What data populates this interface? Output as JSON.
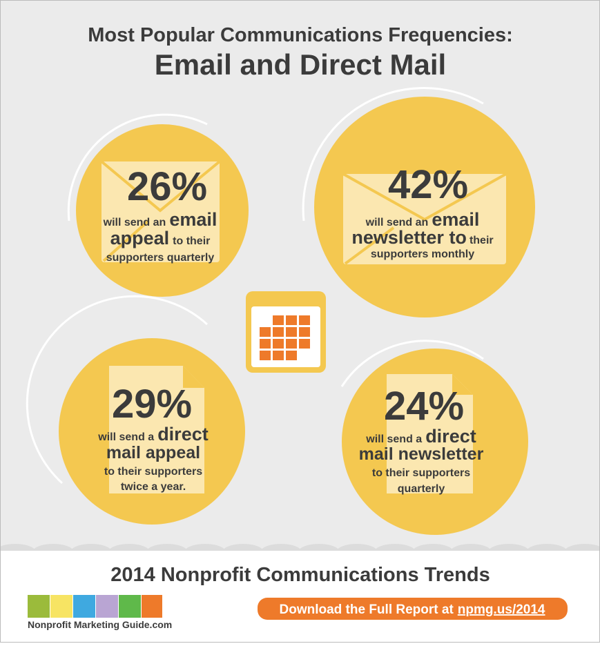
{
  "header": {
    "title": "Most Popular Communications Frequencies:",
    "subtitle": "Email and Direct Mail"
  },
  "stats": [
    {
      "percent": "26%",
      "lines": [
        [
          "will send an",
          "email"
        ],
        [
          "appeal",
          "to their"
        ],
        [
          "supporters quarterly"
        ]
      ]
    },
    {
      "percent": "42%",
      "lines": [
        [
          "will send an",
          "email"
        ],
        [
          "newsletter to",
          "their"
        ],
        [
          "supporters monthly"
        ]
      ]
    },
    {
      "percent": "29%",
      "lines": [
        [
          "will send a",
          "direct"
        ],
        [
          "mail appeal"
        ],
        [
          "to their supporters"
        ],
        [
          "twice a year."
        ]
      ]
    },
    {
      "percent": "24%",
      "lines": [
        [
          "will send a",
          "direct"
        ],
        [
          "mail newsletter"
        ],
        [
          "to their supporters"
        ],
        [
          "quarterly"
        ]
      ]
    }
  ],
  "footer": {
    "title": "2014 Nonprofit Communications Trends",
    "logo": "Nonprofit Marketing Guide.com",
    "button": "Download the Full Report at",
    "link": "npmg.us/2014"
  }
}
